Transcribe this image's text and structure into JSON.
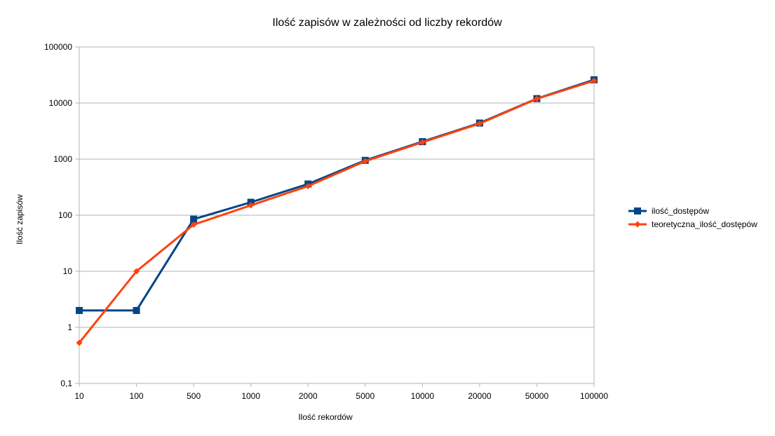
{
  "chart_data": {
    "type": "line",
    "title": "Ilość zapisów w zależności od liczby rekordów",
    "xlabel": "Ilość rekordów",
    "ylabel": "Ilość zapisów",
    "x_scale": "categorical",
    "y_scale": "log",
    "categories": [
      "10",
      "100",
      "500",
      "1000",
      "2000",
      "5000",
      "10000",
      "20000",
      "50000",
      "100000"
    ],
    "y_ticks": [
      0.1,
      1,
      10,
      100,
      1000,
      10000,
      100000
    ],
    "y_tick_labels": [
      "0,1",
      "1",
      "10",
      "100",
      "1000",
      "10000",
      "100000"
    ],
    "ylim": [
      0.1,
      100000
    ],
    "grid": "horizontal",
    "legend_position": "right",
    "series": [
      {
        "name": "ilość_dostępów",
        "color": "#004586",
        "marker": "square",
        "values": [
          2,
          2,
          85,
          170,
          360,
          950,
          2050,
          4400,
          12000,
          26000
        ]
      },
      {
        "name": "teoretyczna_ilość_dostępów",
        "color": "#ff420e",
        "marker": "diamond",
        "values": [
          0.53,
          10,
          68,
          150,
          330,
          920,
          2000,
          4300,
          11900,
          25000
        ]
      }
    ]
  }
}
